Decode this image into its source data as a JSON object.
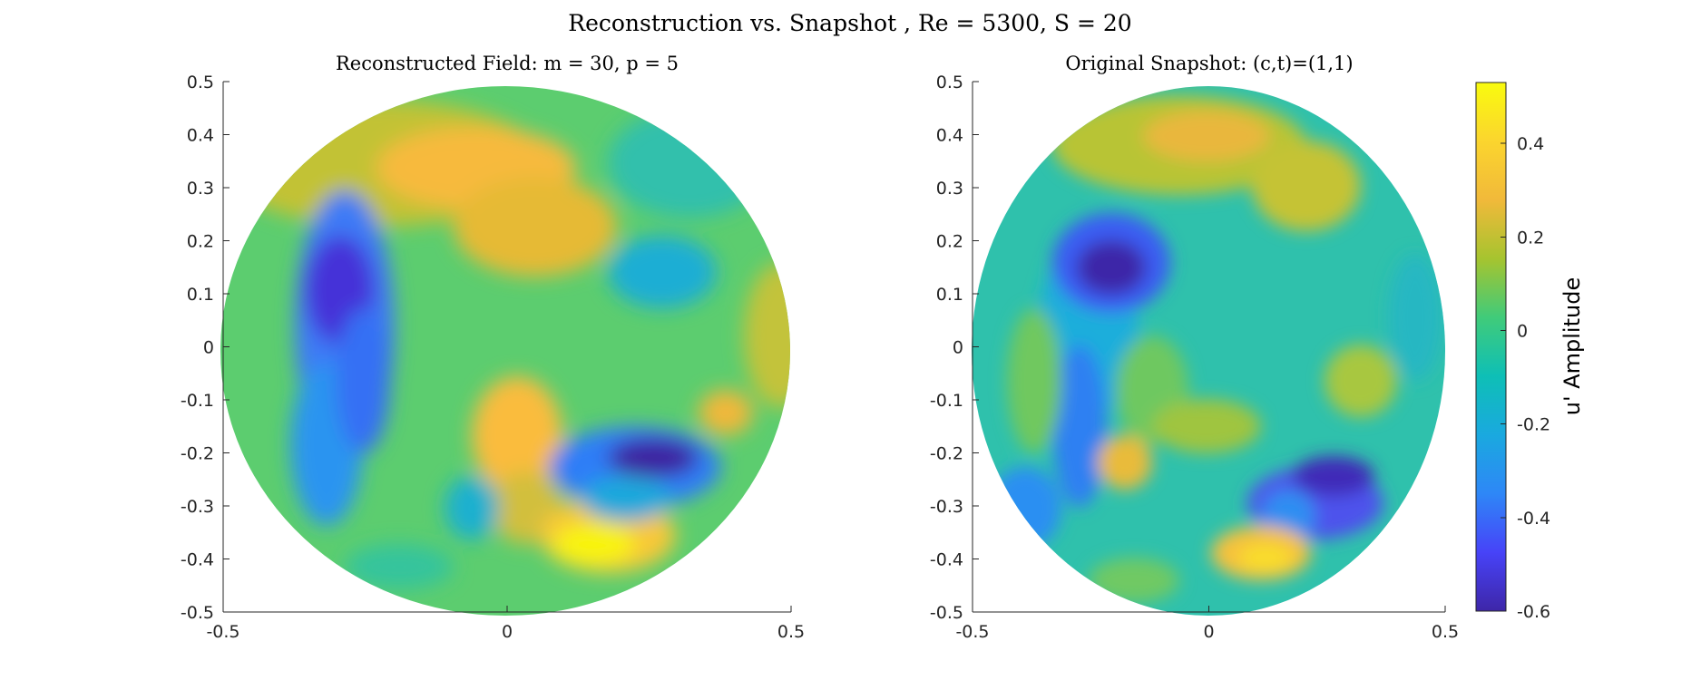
{
  "figure": {
    "title": "Reconstruction vs. Snapshot , Re = 5300, S = 20"
  },
  "chart_data": [
    {
      "type": "heatmap",
      "title": "Reconstructed Field: m = 30, p = 5",
      "xlim": [
        -0.5,
        0.5
      ],
      "ylim": [
        -0.5,
        0.5
      ],
      "xticks": [
        "-0.5",
        "0",
        "0.5"
      ],
      "yticks": [
        "0.5",
        "0.4",
        "0.3",
        "0.2",
        "0.1",
        "0",
        "-0.1",
        "-0.2",
        "-0.3",
        "-0.4",
        "-0.5"
      ],
      "domain": "circular disk, radius 0.5",
      "grid": false,
      "features": [
        {
          "x": -0.29,
          "y": 0.1,
          "value": -0.55
        },
        {
          "x": -0.26,
          "y": -0.1,
          "value": -0.4
        },
        {
          "x": -0.22,
          "y": -0.25,
          "value": -0.25
        },
        {
          "x": 0.26,
          "y": -0.21,
          "value": -0.6
        },
        {
          "x": 0.18,
          "y": -0.28,
          "value": -0.3
        },
        {
          "x": 0.1,
          "y": -0.42,
          "value": 0.5
        },
        {
          "x": 0.02,
          "y": -0.19,
          "value": 0.38
        },
        {
          "x": -0.05,
          "y": 0.35,
          "value": 0.35
        },
        {
          "x": 0.12,
          "y": 0.23,
          "value": 0.28
        },
        {
          "x": 0.42,
          "y": 0.0,
          "value": 0.25
        },
        {
          "x": 0.4,
          "y": -0.12,
          "value": 0.3
        },
        {
          "x": 0.3,
          "y": 0.1,
          "value": -0.05
        }
      ]
    },
    {
      "type": "heatmap",
      "title": "Original Snapshot: (c,t)=(1,1)",
      "xlim": [
        -0.5,
        0.5
      ],
      "ylim": [
        -0.5,
        0.5
      ],
      "xticks": [
        "-0.5",
        "0",
        "0.5"
      ],
      "yticks": [
        "0.5",
        "0.4",
        "0.3",
        "0.2",
        "0.1",
        "0",
        "-0.1",
        "-0.2",
        "-0.3",
        "-0.4",
        "-0.5"
      ],
      "domain": "circular disk, radius 0.5",
      "grid": false,
      "features": [
        {
          "x": -0.22,
          "y": 0.15,
          "value": -0.6
        },
        {
          "x": -0.2,
          "y": -0.05,
          "value": -0.3
        },
        {
          "x": 0.2,
          "y": -0.25,
          "value": -0.5
        },
        {
          "x": 0.12,
          "y": -0.42,
          "value": 0.45
        },
        {
          "x": 0.05,
          "y": 0.37,
          "value": 0.3
        },
        {
          "x": 0.2,
          "y": 0.3,
          "value": 0.25
        },
        {
          "x": -0.2,
          "y": -0.22,
          "value": 0.2
        },
        {
          "x": 0.3,
          "y": -0.38,
          "value": -0.25
        }
      ]
    }
  ],
  "colorbar": {
    "label": "u' Amplitude",
    "range": [
      -0.6,
      0.53
    ],
    "ticks": [
      "0.4",
      "0.2",
      "0",
      "-0.2",
      "-0.4",
      "-0.6"
    ],
    "colormap": "parula",
    "stops": [
      "#3e26a8",
      "#4743f8",
      "#2e87f7",
      "#1aa9df",
      "#0ebfb6",
      "#40cb7a",
      "#a6c42f",
      "#f1b93a",
      "#fbd52e",
      "#f9fb0e"
    ]
  }
}
